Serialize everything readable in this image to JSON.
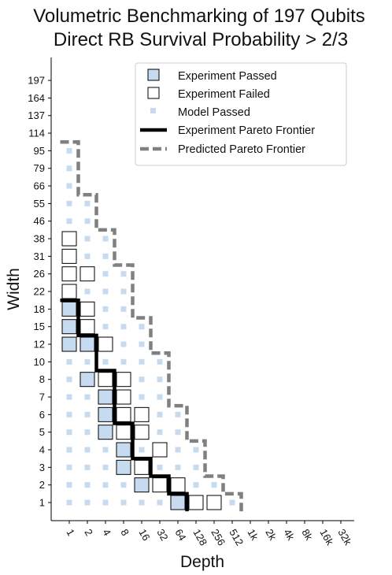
{
  "chart_data": {
    "type": "heatmap",
    "title": "Volumetric Benchmarking of 197 Qubits",
    "subtitle": "Direct RB Survival Probability > 2/3",
    "xlabel": "Depth",
    "ylabel": "Width",
    "x_ticks": [
      "1",
      "2",
      "4",
      "8",
      "16",
      "32",
      "64",
      "128",
      "256",
      "512",
      "1k",
      "2k",
      "4k",
      "8k",
      "16k",
      "32k"
    ],
    "y_ticks": [
      "1",
      "2",
      "3",
      "4",
      "5",
      "6",
      "7",
      "8",
      "10",
      "12",
      "15",
      "18",
      "22",
      "26",
      "31",
      "38",
      "46",
      "55",
      "66",
      "79",
      "95",
      "114",
      "137",
      "164",
      "197"
    ],
    "legend": {
      "position": "upper-right",
      "entries": [
        "Experiment Passed",
        "Experiment Failed",
        "Model Passed",
        "Experiment Pareto Frontier",
        "Predicted Pareto Frontier"
      ]
    },
    "model_passed_max_depth": {
      "1": "512",
      "2": "256",
      "3": "128",
      "4": "128",
      "5": "64",
      "6": "64",
      "7": "32",
      "8": "32",
      "10": "32",
      "12": "16",
      "15": "16",
      "18": "8",
      "22": "8",
      "26": "8",
      "31": "4",
      "38": "4",
      "46": "2",
      "55": "2",
      "66": "1",
      "79": "1",
      "95": "1"
    },
    "experiment_passed": [
      {
        "width": "12",
        "depth": "1"
      },
      {
        "width": "15",
        "depth": "1"
      },
      {
        "width": "18",
        "depth": "1"
      },
      {
        "width": "8",
        "depth": "2"
      },
      {
        "width": "12",
        "depth": "2"
      },
      {
        "width": "5",
        "depth": "4"
      },
      {
        "width": "6",
        "depth": "4"
      },
      {
        "width": "7",
        "depth": "4"
      },
      {
        "width": "3",
        "depth": "8"
      },
      {
        "width": "4",
        "depth": "8"
      },
      {
        "width": "2",
        "depth": "16"
      },
      {
        "width": "1",
        "depth": "64"
      }
    ],
    "experiment_failed": [
      {
        "width": "22",
        "depth": "1"
      },
      {
        "width": "26",
        "depth": "1"
      },
      {
        "width": "31",
        "depth": "1"
      },
      {
        "width": "38",
        "depth": "1"
      },
      {
        "width": "15",
        "depth": "2"
      },
      {
        "width": "18",
        "depth": "2"
      },
      {
        "width": "26",
        "depth": "2"
      },
      {
        "width": "8",
        "depth": "4"
      },
      {
        "width": "12",
        "depth": "4"
      },
      {
        "width": "5",
        "depth": "8"
      },
      {
        "width": "6",
        "depth": "8"
      },
      {
        "width": "7",
        "depth": "8"
      },
      {
        "width": "8",
        "depth": "8"
      },
      {
        "width": "3",
        "depth": "16"
      },
      {
        "width": "5",
        "depth": "16"
      },
      {
        "width": "6",
        "depth": "16"
      },
      {
        "width": "2",
        "depth": "32"
      },
      {
        "width": "4",
        "depth": "32"
      },
      {
        "width": "2",
        "depth": "64"
      },
      {
        "width": "1",
        "depth": "128"
      },
      {
        "width": "1",
        "depth": "256"
      }
    ],
    "experiment_pareto_frontier": [
      {
        "width": "18",
        "depth": "1"
      },
      {
        "width": "12",
        "depth": "2"
      },
      {
        "width": "8",
        "depth": "4"
      },
      {
        "width": "5",
        "depth": "8"
      },
      {
        "width": "3",
        "depth": "16"
      },
      {
        "width": "2",
        "depth": "32"
      },
      {
        "width": "1",
        "depth": "64"
      }
    ],
    "predicted_pareto_frontier": [
      {
        "width": "95",
        "depth": "1"
      },
      {
        "width": "55",
        "depth": "2"
      },
      {
        "width": "38",
        "depth": "4"
      },
      {
        "width": "26",
        "depth": "8"
      },
      {
        "width": "15",
        "depth": "16"
      },
      {
        "width": "10",
        "depth": "32"
      },
      {
        "width": "6",
        "depth": "64"
      },
      {
        "width": "4",
        "depth": "128"
      },
      {
        "width": "2",
        "depth": "256"
      },
      {
        "width": "1",
        "depth": "512"
      }
    ],
    "colors": {
      "experiment_passed": "#c6dbef",
      "experiment_border": "#000000",
      "model_passed": "#c6dbef",
      "experiment_frontier": "#000000",
      "predicted_frontier": "#808080"
    }
  }
}
